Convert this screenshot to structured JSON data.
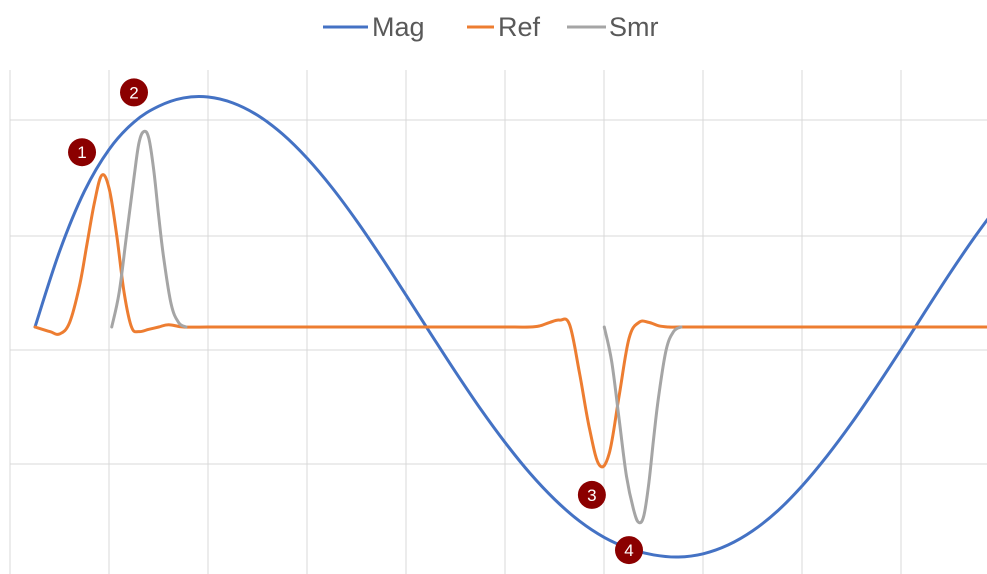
{
  "colors": {
    "background": "#ffffff",
    "grid": "#d9d9d9",
    "legend_text": "#595959",
    "marker_fill": "#8b0000",
    "marker_text": "#ffffff"
  },
  "chart_data": {
    "type": "line",
    "title": "",
    "xlabel": "",
    "ylabel": "",
    "xlim": [
      0,
      19.5
    ],
    "ylim": [
      -1.1,
      1.1
    ],
    "grid": true,
    "legend_position": "top",
    "tick_labels_shown": false,
    "series": [
      {
        "name": "Mag",
        "color": "#4472c4",
        "x": [
          0,
          0.5,
          1,
          1.5,
          2,
          2.5,
          3,
          3.5,
          4,
          4.5,
          5,
          5.5,
          6,
          6.5,
          7,
          7.5,
          8,
          8.5,
          9,
          9.5,
          10,
          10.5,
          11,
          11.5,
          12,
          12.5,
          13,
          13.5,
          14,
          14.5,
          15,
          15.5,
          16,
          16.5,
          17,
          17.5,
          18,
          18.5,
          19,
          19.5
        ],
        "values": [
          0,
          0.331,
          0.591,
          0.773,
          0.891,
          0.96,
          0.996,
          1.0,
          0.974,
          0.92,
          0.839,
          0.733,
          0.606,
          0.461,
          0.303,
          0.137,
          -0.031,
          -0.197,
          -0.356,
          -0.503,
          -0.636,
          -0.75,
          -0.844,
          -0.915,
          -0.963,
          -0.991,
          -1.0,
          -0.986,
          -0.948,
          -0.886,
          -0.8,
          -0.69,
          -0.561,
          -0.417,
          -0.26,
          -0.096,
          0.073,
          0.239,
          0.396,
          0.542
        ]
      },
      {
        "name": "Ref",
        "color": "#ed7d31",
        "x": [
          0,
          0.3,
          0.5,
          0.7,
          0.9,
          1.05,
          1.2,
          1.35,
          1.5,
          1.65,
          1.8,
          1.95,
          2.1,
          2.3,
          2.5,
          2.7,
          3,
          3.5,
          4,
          5,
          6,
          7,
          8,
          9,
          9.5,
          10,
          10.2,
          10.4,
          10.6,
          10.8,
          11,
          11.2,
          11.4,
          11.6,
          11.8,
          12,
          12.2,
          12.4,
          12.6,
          12.8,
          13,
          13.5,
          14,
          15,
          16,
          17,
          18,
          19,
          19.5
        ],
        "values": [
          0,
          -0.02,
          -0.03,
          0.02,
          0.18,
          0.36,
          0.54,
          0.66,
          0.6,
          0.4,
          0.15,
          0,
          -0.02,
          -0.01,
          0.0,
          0.01,
          0.0,
          0.0,
          0.0,
          0.0,
          0.0,
          0.0,
          0.0,
          0.0,
          0.0,
          0.0,
          0.005,
          0.02,
          0.03,
          0.01,
          -0.2,
          -0.44,
          -0.6,
          -0.55,
          -0.3,
          -0.05,
          0.02,
          0.02,
          0.005,
          0.0,
          0.0,
          0.0,
          0.0,
          0.0,
          0.0,
          0.0,
          0.0,
          0.0,
          0.0
        ]
      },
      {
        "name": "Smr",
        "color": "#a5a5a5",
        "x": [
          1.55,
          1.7,
          1.85,
          2.0,
          2.1,
          2.2,
          2.3,
          2.4,
          2.5,
          2.6,
          2.75,
          2.9,
          3.05,
          11.5,
          11.65,
          11.8,
          11.95,
          12.1,
          12.2,
          12.3,
          12.4,
          12.5,
          12.6,
          12.75,
          12.9,
          13.05
        ],
        "values": [
          0,
          0.15,
          0.4,
          0.65,
          0.8,
          0.85,
          0.82,
          0.68,
          0.48,
          0.3,
          0.1,
          0.02,
          0,
          0,
          -0.15,
          -0.4,
          -0.65,
          -0.8,
          -0.85,
          -0.82,
          -0.68,
          -0.48,
          -0.3,
          -0.1,
          -0.02,
          0
        ]
      }
    ],
    "annotations": [
      {
        "label": "1",
        "x": 0.95,
        "y": 0.76
      },
      {
        "label": "2",
        "x": 2.0,
        "y": 1.02
      },
      {
        "label": "3",
        "x": 11.25,
        "y": -0.73
      },
      {
        "label": "4",
        "x": 12.0,
        "y": -0.97
      }
    ]
  }
}
